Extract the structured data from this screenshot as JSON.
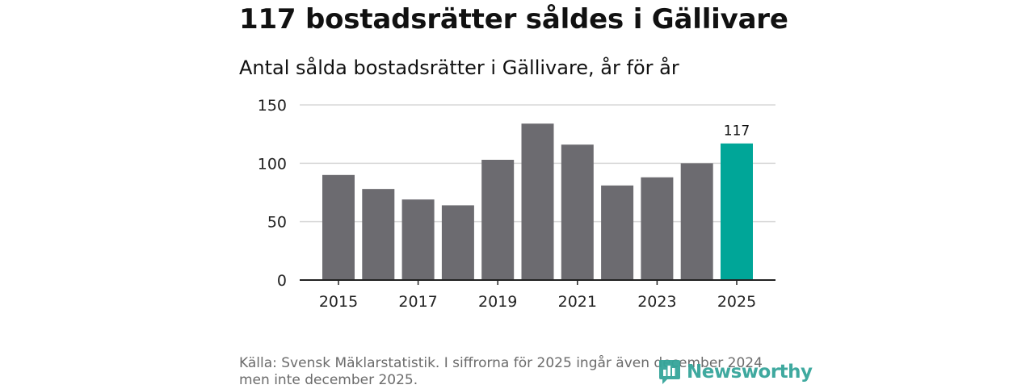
{
  "headline": "117 bostadsrätter såldes i Gällivare",
  "colors": {
    "bar": "#6c6b70",
    "highlight": "#00a698",
    "grid": "#d8d8d8",
    "axis": "#222222"
  },
  "chart_data": {
    "type": "bar",
    "title": "Antal sålda bostadsrätter i Gällivare, år för år",
    "xlabel": "",
    "ylabel": "",
    "categories": [
      "2015",
      "2016",
      "2017",
      "2018",
      "2019",
      "2020",
      "2021",
      "2022",
      "2023",
      "2024",
      "2025"
    ],
    "values": [
      90,
      78,
      69,
      64,
      103,
      134,
      116,
      81,
      88,
      100,
      117
    ],
    "x_tick_labels": [
      "2015",
      "2017",
      "2019",
      "2021",
      "2023",
      "2025"
    ],
    "y_ticks": [
      0,
      50,
      100,
      150
    ],
    "y_tick_labels": [
      "0",
      "50",
      "100",
      "150"
    ],
    "ylim": [
      0,
      150
    ],
    "grid": true,
    "highlight_category": "2025",
    "annotations": [
      {
        "category": "2025",
        "text": "117"
      }
    ]
  },
  "source": "Källa: Svensk Mäklarstatistik. I siffrorna för 2025 ingår även december 2024 men inte december 2025.",
  "logo": {
    "icon": "newsworthy-logo-icon",
    "text": "Newsworthy"
  }
}
